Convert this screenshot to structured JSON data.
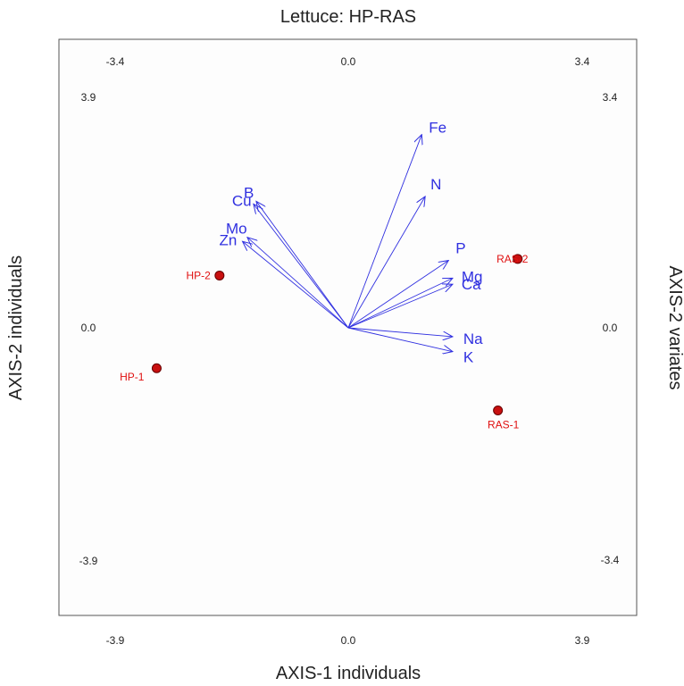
{
  "chart_data": {
    "type": "biplot",
    "title": "Lettuce: HP-RAS",
    "xlabel": "AXIS-1 individuals",
    "ylabel": "AXIS-2 individuals",
    "ylabel_right": "AXIS-2 variates",
    "individuals_axes": {
      "xlim": [
        -3.9,
        3.9
      ],
      "ylim": [
        -3.9,
        3.9
      ],
      "x_ticks": [
        "-3.9",
        "0.0",
        "3.9"
      ],
      "y_ticks": [
        "-3.9",
        "0.0",
        "3.9"
      ]
    },
    "variates_axes": {
      "xlim": [
        -3.4,
        3.4
      ],
      "ylim": [
        -3.4,
        3.4
      ],
      "x_ticks": [
        "-3.4",
        "0.0",
        "3.4"
      ],
      "y_ticks": [
        "-3.4",
        "0.0",
        "3.4"
      ]
    },
    "individuals": [
      {
        "label": "HP-1",
        "x": -3.2,
        "y": -0.68
      },
      {
        "label": "HP-2",
        "x": -2.15,
        "y": 0.88
      },
      {
        "label": "RAS-1",
        "x": 2.5,
        "y": -1.39
      },
      {
        "label": "RAS-2",
        "x": 2.83,
        "y": 1.16
      }
    ],
    "variates": [
      {
        "label": "Fe",
        "x": 1.07,
        "y": 2.84
      },
      {
        "label": "N",
        "x": 1.12,
        "y": 1.93
      },
      {
        "label": "B",
        "x": -1.34,
        "y": 1.86
      },
      {
        "label": "Cu",
        "x": -1.38,
        "y": 1.82
      },
      {
        "label": "Mo",
        "x": -1.47,
        "y": 1.33
      },
      {
        "label": "Zn",
        "x": -1.54,
        "y": 1.27
      },
      {
        "label": "P",
        "x": 1.46,
        "y": 0.99
      },
      {
        "label": "Mg",
        "x": 1.52,
        "y": 0.73
      },
      {
        "label": "Ca",
        "x": 1.52,
        "y": 0.64
      },
      {
        "label": "Na",
        "x": 1.52,
        "y": -0.13
      },
      {
        "label": "K",
        "x": 1.52,
        "y": -0.35
      }
    ],
    "colors": {
      "variates": "#3030e0",
      "individuals": "#e01010",
      "point_fill": "#c81010"
    }
  }
}
